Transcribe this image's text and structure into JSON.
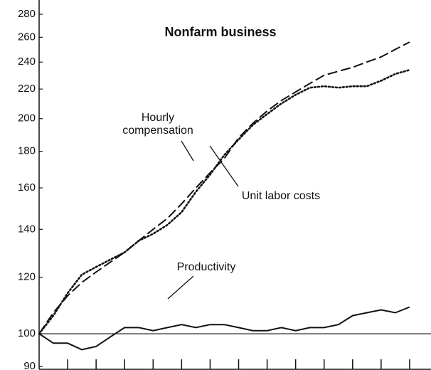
{
  "chart_data": {
    "type": "line",
    "title": "Nonfarm business",
    "log_scale": true,
    "grid": false,
    "x": [
      0,
      2,
      4,
      6,
      8,
      10,
      12,
      14,
      16,
      18,
      20,
      22,
      24,
      26,
      28,
      30,
      32,
      34,
      36,
      38,
      40,
      42,
      44,
      46,
      48,
      50,
      52
    ],
    "xlim": [
      0,
      55
    ],
    "xticks": [
      4,
      8,
      12,
      16,
      20,
      24,
      28,
      32,
      36,
      40,
      44,
      48,
      52
    ],
    "ylim": [
      90,
      280
    ],
    "yticks": [
      90,
      100,
      120,
      140,
      160,
      180,
      200,
      220,
      240,
      260,
      280
    ],
    "baseline": 100,
    "series": [
      {
        "name": "Hourly compensation",
        "color": "#111111",
        "style": "dashed",
        "values": [
          100,
          107,
          113,
          118,
          122,
          126,
          130,
          135,
          140,
          145,
          152,
          160,
          168,
          176,
          188,
          197,
          205,
          212,
          218,
          224,
          230,
          233,
          236,
          240,
          244,
          250,
          256
        ]
      },
      {
        "name": "Unit labor costs",
        "color": "#111111",
        "style": "dotted",
        "values": [
          100,
          106,
          114,
          121,
          124,
          127,
          130,
          135,
          138,
          142,
          148,
          158,
          167,
          178,
          187,
          196,
          203,
          210,
          216,
          221,
          222,
          221,
          222,
          222,
          226,
          231,
          234
        ]
      },
      {
        "name": "Productivity",
        "color": "#111111",
        "style": "solid",
        "values": [
          100,
          97,
          97,
          95,
          96,
          99,
          102,
          102,
          101,
          102,
          103,
          102,
          103,
          103,
          102,
          101,
          101,
          102,
          101,
          102,
          102,
          103,
          106,
          107,
          108,
          107,
          109
        ]
      }
    ]
  }
}
